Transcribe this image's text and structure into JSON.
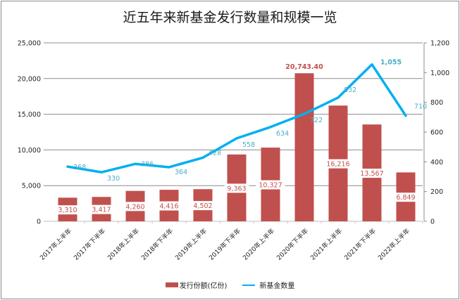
{
  "chart_data": {
    "type": "bar+line",
    "title": "近五年来新基金发行数量和规模一览",
    "categories": [
      "2017年上半年",
      "2017年下半年",
      "2018年上半年",
      "2018年下半年",
      "2019年上半年",
      "2019年下半年",
      "2020年上半年",
      "2020年下半年",
      "2021年上半年",
      "2021年下半年",
      "2022年上半年"
    ],
    "series": [
      {
        "name": "发行份额(亿份)",
        "type": "bar",
        "axis": "left",
        "color": "#c0504d",
        "values": [
          3310,
          3417,
          4260,
          4416,
          4502,
          9363,
          10327,
          20743.4,
          16216,
          13567,
          6849
        ],
        "labels": [
          "3,310",
          "3,417",
          "4,260",
          "4,416",
          "4,502",
          "9,363",
          "10,327",
          "20,743.40",
          "16,216",
          "13,567",
          "6,849"
        ]
      },
      {
        "name": "新基金数量",
        "type": "line",
        "axis": "right",
        "color": "#00b0f0",
        "values": [
          368,
          330,
          386,
          364,
          428,
          558,
          634,
          722,
          832,
          1055,
          710
        ],
        "labels": [
          "368",
          "330",
          "386",
          "364",
          "428",
          "558",
          "634",
          "722",
          "832",
          "1,055",
          "710"
        ]
      }
    ],
    "yaxis_left": {
      "range": [
        0,
        25000
      ],
      "ticks": [
        "0",
        "5,000",
        "10,000",
        "15,000",
        "20,000",
        "25,000"
      ],
      "values": [
        0,
        5000,
        10000,
        15000,
        20000,
        25000
      ]
    },
    "yaxis_right": {
      "range": [
        0,
        1200
      ],
      "ticks": [
        "0",
        "200",
        "400",
        "600",
        "800",
        "1,000",
        "1,200"
      ],
      "values": [
        0,
        200,
        400,
        600,
        800,
        1000,
        1200
      ]
    },
    "grid": true,
    "legend": "bottom",
    "legend_labels": [
      "发行份额(亿份)",
      "新基金数量"
    ]
  }
}
